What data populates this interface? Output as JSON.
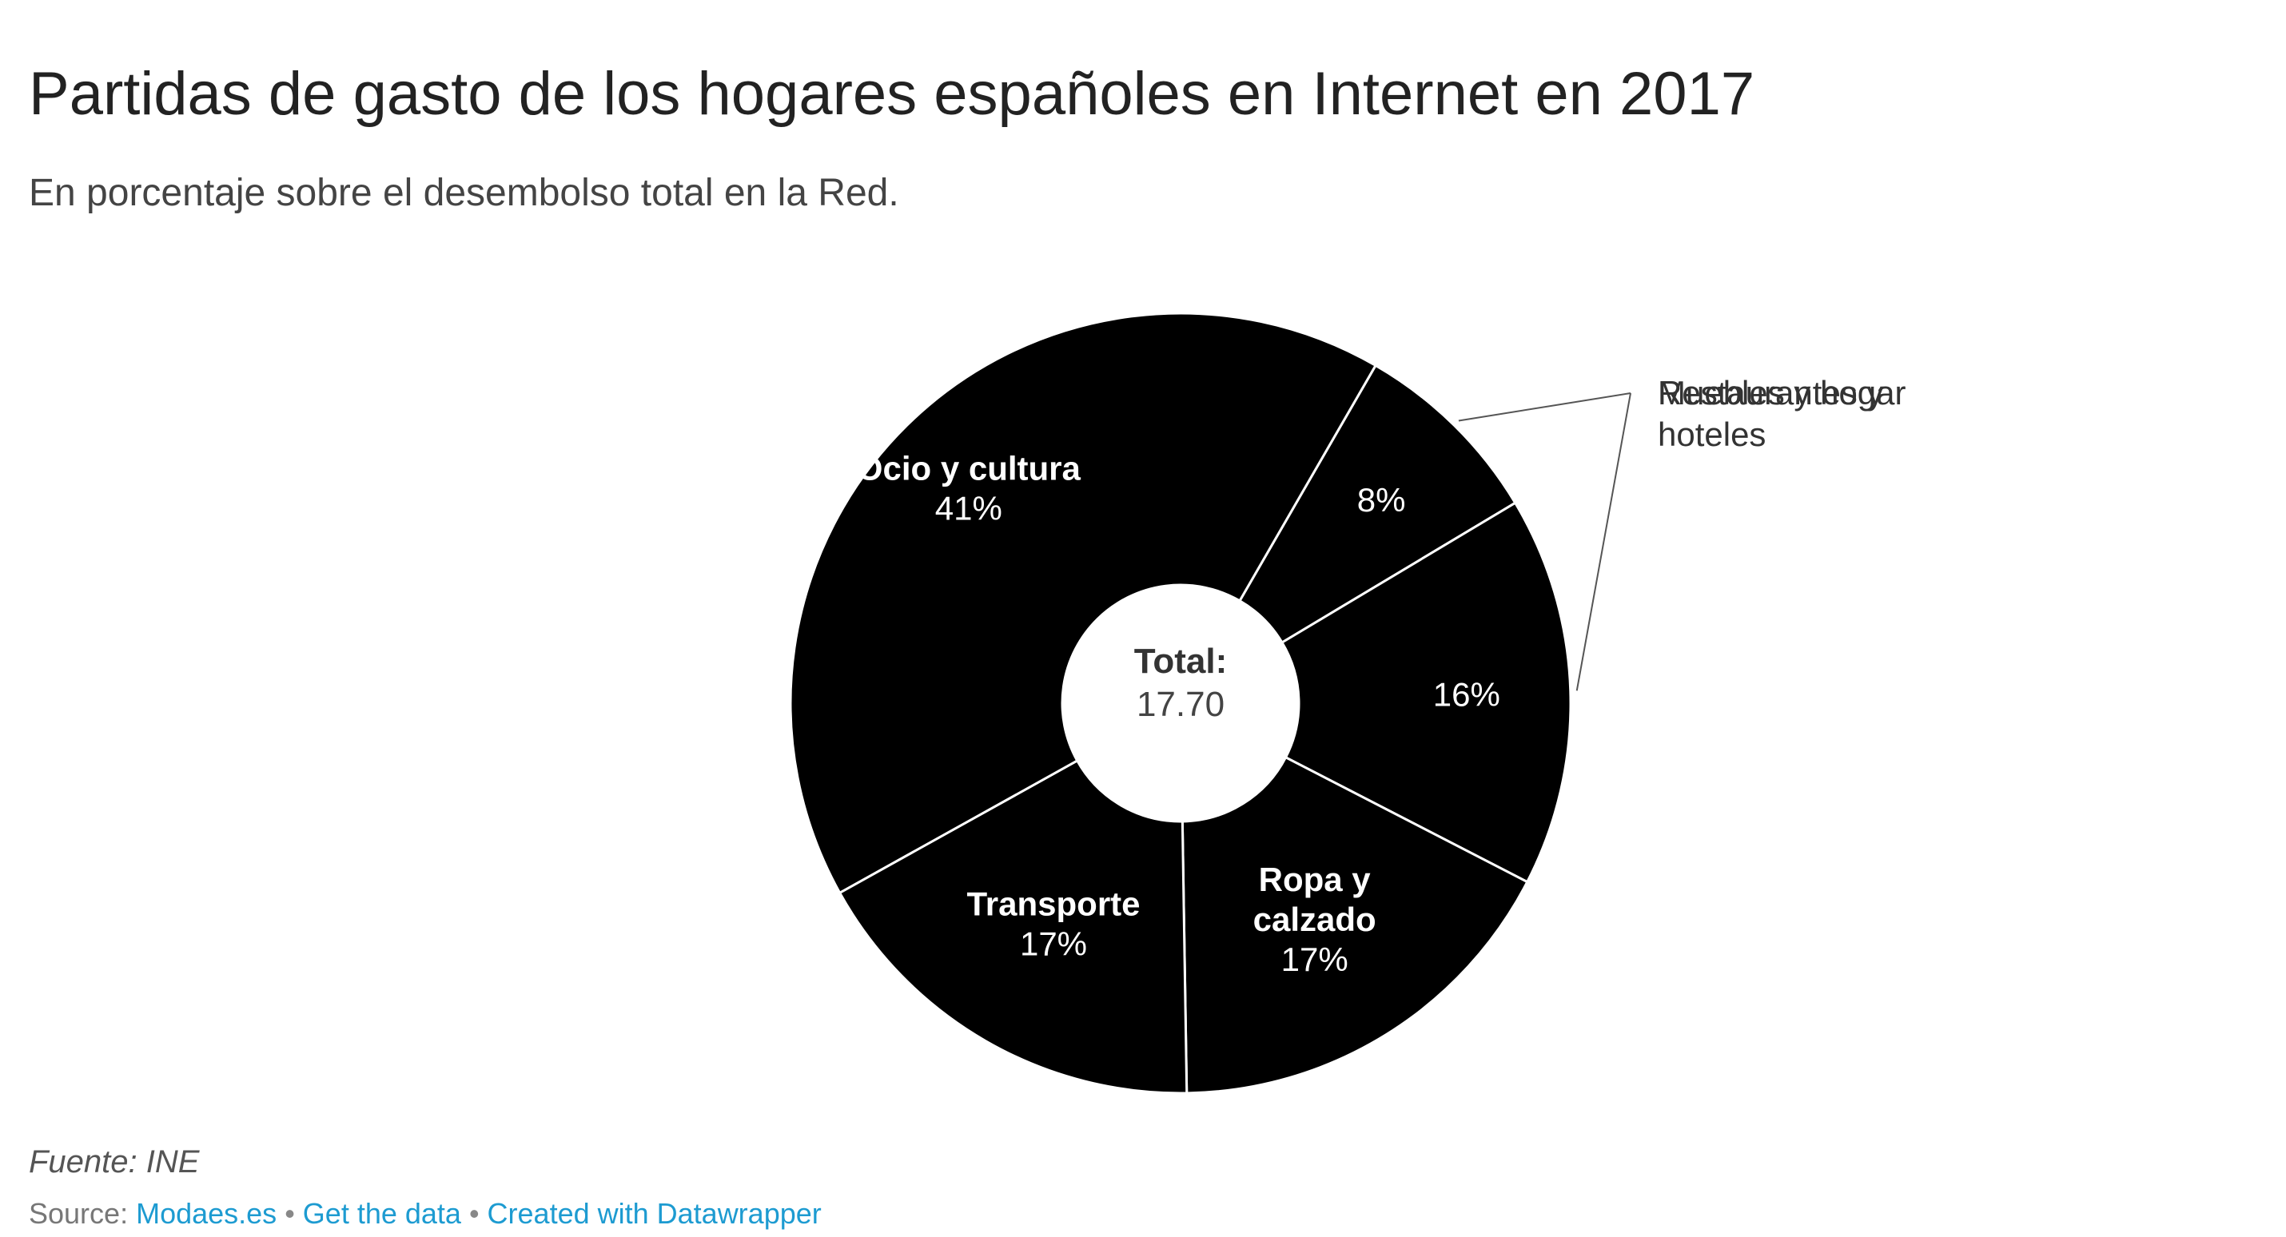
{
  "header": {
    "title": "Partidas de gasto de los hogares españoles en Internet en 2017",
    "subtitle": "En porcentaje sobre el desembolso total en la Red."
  },
  "chart_data": {
    "type": "pie",
    "variant": "donut",
    "title": "Partidas de gasto de los hogares españoles en Internet en 2017",
    "subtitle": "En porcentaje sobre el desembolso total en la Red.",
    "center_label": "Total:",
    "center_value": "17.70",
    "slices": [
      {
        "name": "Muebles y hogar",
        "value": 8,
        "label": "8%",
        "label_position": "outside"
      },
      {
        "name": "Restaurantes y hoteles",
        "value": 16,
        "label": "16%",
        "label_position": "outside"
      },
      {
        "name": "Ropa y calzado",
        "value": 17,
        "label": "17%",
        "label_position": "inside"
      },
      {
        "name": "Transporte",
        "value": 17,
        "label": "17%",
        "label_position": "inside"
      },
      {
        "name": "Ocio y cultura",
        "value": 41,
        "label": "41%",
        "label_position": "inside"
      }
    ],
    "slice_color": "#000000",
    "separator_color": "#ffffff"
  },
  "footer": {
    "note": "Fuente: INE",
    "source_prefix": "Source: ",
    "source_link": "Modaes.es",
    "get_data": "Get the data",
    "created_with": "Created with Datawrapper",
    "separator": "•"
  },
  "colors": {
    "link": "#1d9bd1",
    "title": "#222222"
  }
}
